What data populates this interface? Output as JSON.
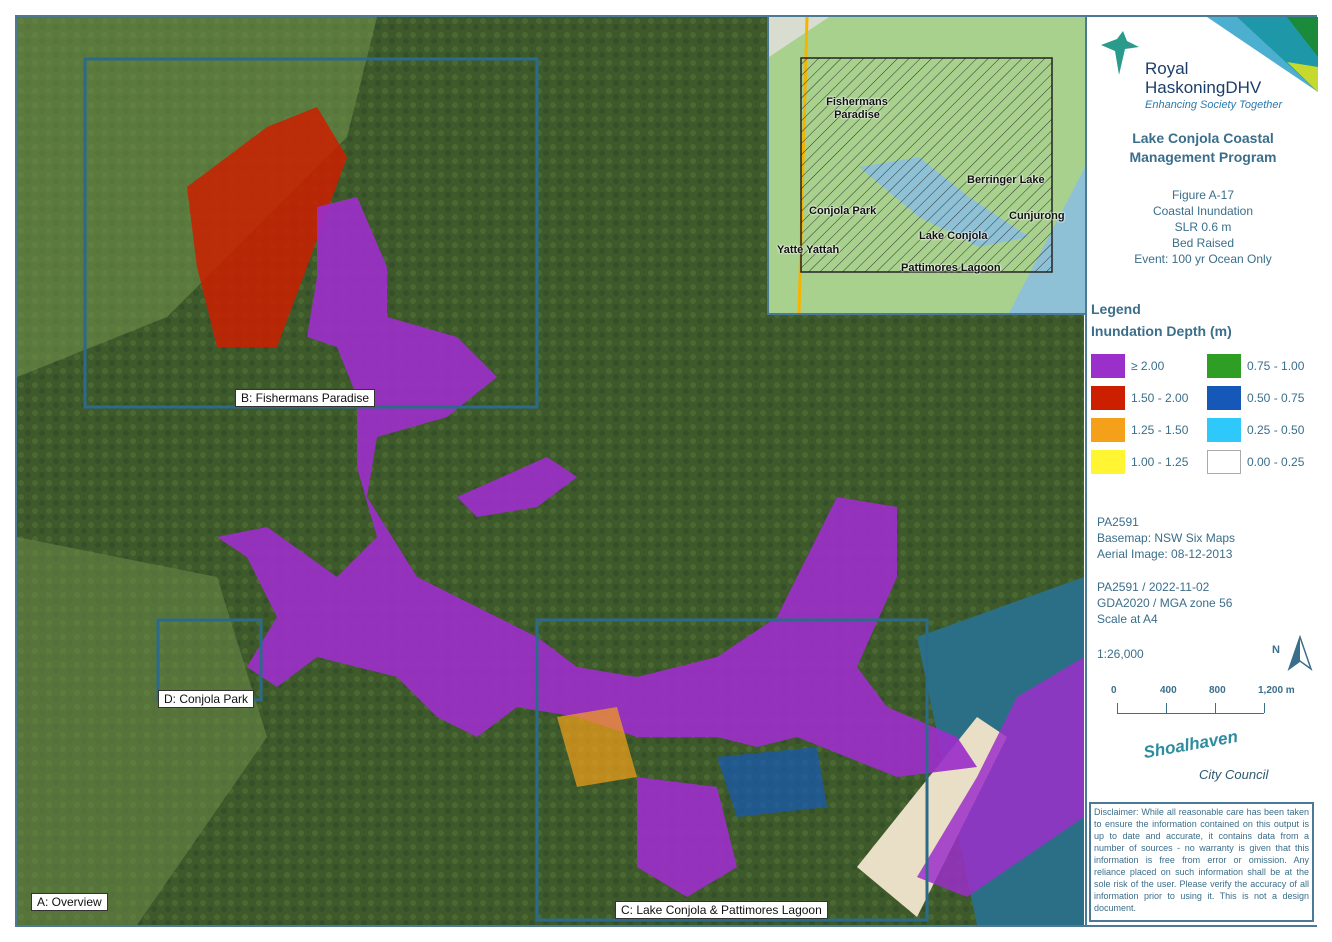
{
  "map_labels": {
    "overview": "A: Overview",
    "fishermans_paradise": "B: Fishermans Paradise",
    "lake_conjola": "C: Lake Conjola & Pattimores Lagoon",
    "conjola_park": "D: Conjola Park"
  },
  "inset_labels": [
    "Fishermans Paradise",
    "Berringer Lake",
    "Conjola Park",
    "Cunjurong",
    "Lake Conjola",
    "Yatte Yattah",
    "Pattimores Lagoon"
  ],
  "logo": {
    "line1": "Royal",
    "line2": "HaskoningDHV",
    "tagline": "Enhancing Society Together"
  },
  "project_title": "Lake Conjola Coastal Management Program",
  "figure": {
    "number": "Figure A-17",
    "line1": "Coastal Inundation",
    "line2": "SLR 0.6 m",
    "line3": "Bed Raised",
    "line4": "Event: 100 yr Ocean Only"
  },
  "legend": {
    "title": "Legend",
    "subtitle": "Inundation Depth (m)",
    "items": [
      {
        "label": "≥ 2.00",
        "color": "#9b2fc9"
      },
      {
        "label": "1.50 - 2.00",
        "color": "#cc1f00"
      },
      {
        "label": "1.25 - 1.50",
        "color": "#f5a01a"
      },
      {
        "label": "1.00 - 1.25",
        "color": "#fff533"
      },
      {
        "label": "0.75 - 1.00",
        "color": "#2e9e24"
      },
      {
        "label": "0.50 - 0.75",
        "color": "#1658b8"
      },
      {
        "label": "0.25  - 0.50",
        "color": "#2ec8fa"
      },
      {
        "label": "0.00 - 0.25",
        "color": "#ffffff"
      }
    ]
  },
  "source": {
    "project": "PA2591",
    "basemap": "Basemap: NSW Six Maps",
    "aerial": "Aerial Image: 08-12-2013"
  },
  "meta": {
    "ref": "PA2591 / 2022-11-02",
    "datum": "GDA2020 / MGA zone 56",
    "scale_note": "Scale at A4",
    "scale": "1:26,000",
    "north": "N"
  },
  "scalebar": {
    "ticks": [
      "0",
      "400",
      "800",
      "1,200 m"
    ]
  },
  "council": {
    "line1": "Shoalhaven",
    "line2": "City Council"
  },
  "disclaimer": "Disclaimer: While all reasonable care has been taken to ensure the information contained on this output is up to date and accurate, it contains data from a number of sources - no warranty is given that this information is free from error or omission. Any reliance placed on such information shall be at the sole risk of the user. Please verify the accuracy of all information prior to using it. This is not a design document."
}
